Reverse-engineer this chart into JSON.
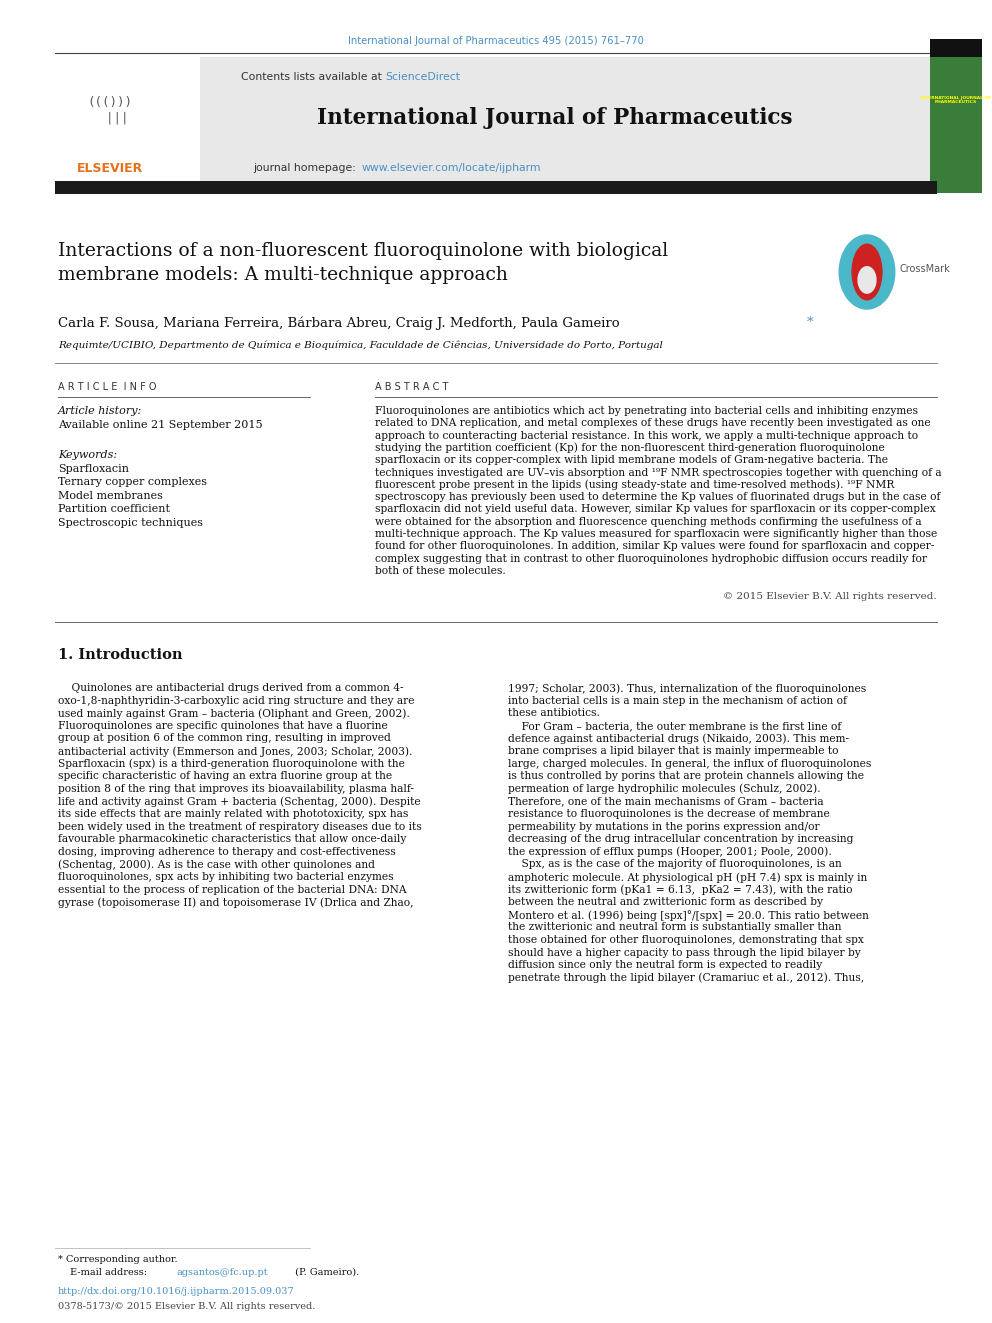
{
  "page_width": 9.92,
  "page_height": 13.23,
  "bg_color": "#ffffff",
  "top_journal_ref": "International Journal of Pharmaceutics 495 (2015) 761–770",
  "top_journal_ref_color": "#4a90c4",
  "journal_header_bg": "#e8e8e8",
  "journal_name": "International Journal of Pharmaceutics",
  "contents_text": "Contents lists available at ",
  "science_direct": "ScienceDirect",
  "journal_homepage_text": "journal homepage: ",
  "journal_url": "www.elsevier.com/locate/ijpharm",
  "link_color": "#4a90c4",
  "black_bar_color": "#1a1a1a",
  "article_title": "Interactions of a non-fluorescent fluoroquinolone with biological\nmembrane models: A multi-technique approach",
  "authors": "Carla F. Sousa, Mariana Ferreira, Bárbara Abreu, Craig J. Medforth, Paula Gameiro",
  "affiliation": "Requimte/UCIBIO, Departmento de Química e Bioquímica, Faculdade de Ciências, Universidade do Porto, Portugal",
  "article_info_title": "A R T I C L E  I N F O",
  "article_history": "Article history:",
  "available_online": "Available online 21 September 2015",
  "keywords_title": "Keywords:",
  "keywords": [
    "Sparfloxacin",
    "Ternary copper complexes",
    "Model membranes",
    "Partition coefficient",
    "Spectroscopic techniques"
  ],
  "abstract_title": "A B S T R A C T",
  "copyright": "© 2015 Elsevier B.V. All rights reserved.",
  "intro_title": "1. Introduction",
  "footer_url": "http://dx.doi.org/10.1016/j.ijpharm.2015.09.037",
  "footer_issn": "0378-5173/© 2015 Elsevier B.V. All rights reserved.",
  "abstract_lines": [
    "Fluoroquinolones are antibiotics which act by penetrating into bacterial cells and inhibiting enzymes",
    "related to DNA replication, and metal complexes of these drugs have recently been investigated as one",
    "approach to counteracting bacterial resistance. In this work, we apply a multi-technique approach to",
    "studying the partition coefficient (Kp) for the non-fluorescent third-generation fluoroquinolone",
    "sparfloxacin or its copper-complex with lipid membrane models of Gram-negative bacteria. The",
    "techniques investigated are UV–vis absorption and ¹⁹F NMR spectroscopies together with quenching of a",
    "fluorescent probe present in the lipids (using steady-state and time-resolved methods). ¹⁹F NMR",
    "spectroscopy has previously been used to determine the Kp values of fluorinated drugs but in the case of",
    "sparfloxacin did not yield useful data. However, similar Kp values for sparfloxacin or its copper-complex",
    "were obtained for the absorption and fluorescence quenching methods confirming the usefulness of a",
    "multi-technique approach. The Kp values measured for sparfloxacin were significantly higher than those",
    "found for other fluoroquinolones. In addition, similar Kp values were found for sparfloxacin and copper-",
    "complex suggesting that in contrast to other fluoroquinolones hydrophobic diffusion occurs readily for",
    "both of these molecules."
  ],
  "intro_col1_lines": [
    "    Quinolones are antibacterial drugs derived from a common 4-",
    "oxo-1,8-naphthyridin-3-carboxylic acid ring structure and they are",
    "used mainly against Gram – bacteria (Oliphant and Green, 2002).",
    "Fluoroquinolones are specific quinolones that have a fluorine",
    "group at position 6 of the common ring, resulting in improved",
    "antibacterial activity (Emmerson and Jones, 2003; Scholar, 2003).",
    "Sparfloxacin (spx) is a third-generation fluoroquinolone with the",
    "specific characteristic of having an extra fluorine group at the",
    "position 8 of the ring that improves its bioavailability, plasma half-",
    "life and activity against Gram + bacteria (Schentag, 2000). Despite",
    "its side effects that are mainly related with phototoxicity, spx has",
    "been widely used in the treatment of respiratory diseases due to its",
    "favourable pharmacokinetic characteristics that allow once-daily",
    "dosing, improving adherence to therapy and cost-effectiveness",
    "(Schentag, 2000). As is the case with other quinolones and",
    "fluoroquinolones, spx acts by inhibiting two bacterial enzymes",
    "essential to the process of replication of the bacterial DNA: DNA",
    "gyrase (topoisomerase II) and topoisomerase IV (Drlica and Zhao,"
  ],
  "intro_col2_lines": [
    "1997; Scholar, 2003). Thus, internalization of the fluoroquinolones",
    "into bacterial cells is a main step in the mechanism of action of",
    "these antibiotics.",
    "    For Gram – bacteria, the outer membrane is the first line of",
    "defence against antibacterial drugs (Nikaido, 2003). This mem-",
    "brane comprises a lipid bilayer that is mainly impermeable to",
    "large, charged molecules. In general, the influx of fluoroquinolones",
    "is thus controlled by porins that are protein channels allowing the",
    "permeation of large hydrophilic molecules (Schulz, 2002).",
    "Therefore, one of the main mechanisms of Gram – bacteria",
    "resistance to fluoroquinolones is the decrease of membrane",
    "permeability by mutations in the porins expression and/or",
    "decreasing of the drug intracellular concentration by increasing",
    "the expression of efflux pumps (Hooper, 2001; Poole, 2000).",
    "    Spx, as is the case of the majority of fluoroquinolones, is an",
    "amphoteric molecule. At physiological pH (pH 7.4) spx is mainly in",
    "its zwitterionic form (pKa1 = 6.13,  pKa2 = 7.43), with the ratio",
    "between the neutral and zwitterionic form as described by",
    "Montero et al. (1996) being [spx]°/[spx] = 20.0. This ratio between",
    "the zwitterionic and neutral form is substantially smaller than",
    "those obtained for other fluoroquinolones, demonstrating that spx",
    "should have a higher capacity to pass through the lipid bilayer by",
    "diffusion since only the neutral form is expected to readily",
    "penetrate through the lipid bilayer (Cramariuc et al., 2012). Thus,"
  ]
}
